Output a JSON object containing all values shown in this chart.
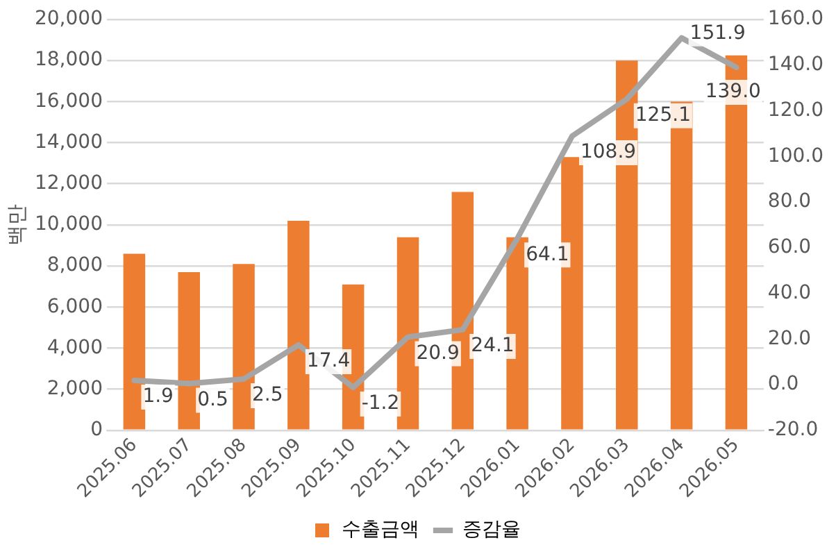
{
  "chart_data": {
    "type": "bar",
    "ylabel": "백만",
    "categories": [
      "2025.06",
      "2025.07",
      "2025.08",
      "2025.09",
      "2025.10",
      "2025.11",
      "2025.12",
      "2026.01",
      "2026.02",
      "2026.03",
      "2026.04",
      "2026.05"
    ],
    "series": [
      {
        "name": "수출금액",
        "color": "#ed7d31",
        "values": [
          8600,
          7700,
          8100,
          10200,
          7100,
          9400,
          11600,
          9400,
          13300,
          18000,
          16000,
          18250
        ]
      },
      {
        "name": "증감율",
        "type": "line",
        "axis": "y2",
        "color": "#a5a5a5",
        "values": [
          1.9,
          0.5,
          2.5,
          17.4,
          -1.2,
          20.9,
          24.1,
          64.1,
          108.9,
          125.1,
          151.9,
          139.0
        ],
        "value_labels": [
          "1.9",
          "0.5",
          "2.5",
          "17.4",
          "-1.2",
          "20.9",
          "24.1",
          "64.1",
          "108.9",
          "125.1",
          "151.9",
          "139.0"
        ]
      }
    ],
    "ylim": [
      0,
      20000
    ],
    "yticks": [
      {
        "value": 0,
        "label": "0"
      },
      {
        "value": 2000,
        "label": "2,000"
      },
      {
        "value": 4000,
        "label": "4,000"
      },
      {
        "value": 6000,
        "label": "6,000"
      },
      {
        "value": 8000,
        "label": "8,000"
      },
      {
        "value": 10000,
        "label": "10,000"
      },
      {
        "value": 12000,
        "label": "12,000"
      },
      {
        "value": 14000,
        "label": "14,000"
      },
      {
        "value": 16000,
        "label": "16,000"
      },
      {
        "value": 18000,
        "label": "18,000"
      },
      {
        "value": 20000,
        "label": "20,000"
      }
    ],
    "y2lim": [
      -20,
      160
    ],
    "y2ticks": [
      {
        "value": -20,
        "label": "-20.0"
      },
      {
        "value": 0,
        "label": "0.0"
      },
      {
        "value": 20,
        "label": "20.0"
      },
      {
        "value": 40,
        "label": "40.0"
      },
      {
        "value": 60,
        "label": "60.0"
      },
      {
        "value": 80,
        "label": "80.0"
      },
      {
        "value": 100,
        "label": "100.0"
      },
      {
        "value": 120,
        "label": "120.0"
      },
      {
        "value": 140,
        "label": "140.0"
      },
      {
        "value": 160,
        "label": "160.0"
      }
    ],
    "grid": "y",
    "legend": "bottom",
    "marker": "none",
    "line_style": "solid"
  }
}
